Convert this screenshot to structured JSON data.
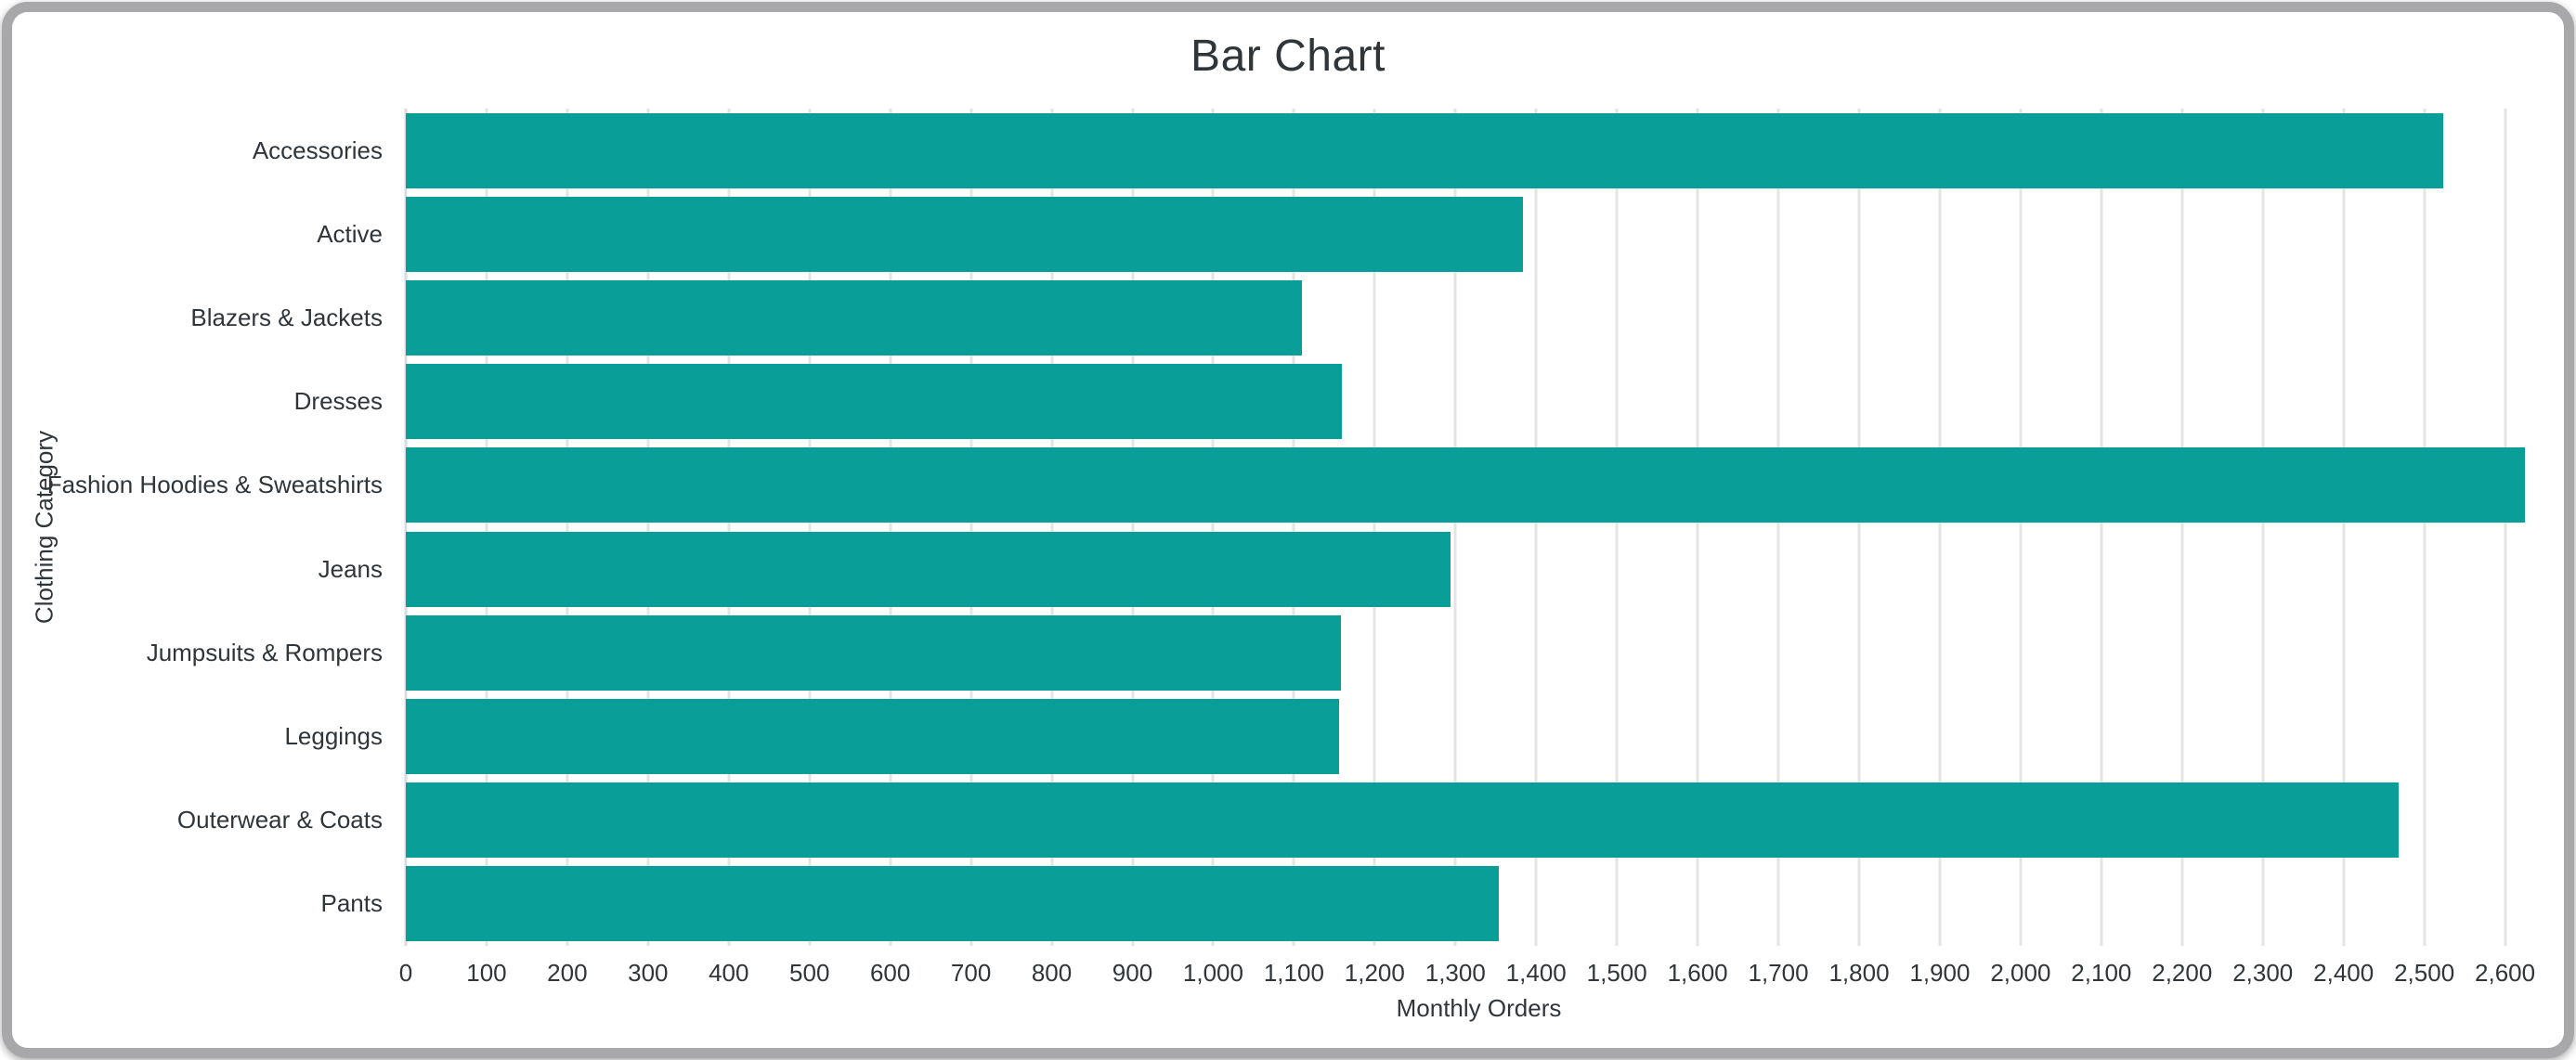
{
  "card": {
    "background": "#ffffff",
    "border_color": "#a8a8ab"
  },
  "chart_data": {
    "type": "bar",
    "orientation": "horizontal",
    "title": "Bar Chart",
    "xlabel": "Monthly Orders",
    "ylabel": "Clothing Category",
    "categories": [
      "Accessories",
      "Active",
      "Blazers & Jackets",
      "Dresses",
      "Fashion Hoodies & Sweatshirts",
      "Jeans",
      "Jumpsuits & Rompers",
      "Leggings",
      "Outerwear & Coats",
      "Pants"
    ],
    "values": [
      2523,
      1384,
      1110,
      1159,
      2625,
      1294,
      1158,
      1156,
      2468,
      1354
    ],
    "xlim": [
      0,
      2658
    ],
    "x_tick_interval": 100,
    "x_tick_max": 2600,
    "grid": true,
    "legend": false,
    "colors": {
      "bar": "#0a9e98",
      "grid": "#e4e4e4",
      "axis_line": "#d8dce2",
      "text": "#30353a"
    }
  }
}
